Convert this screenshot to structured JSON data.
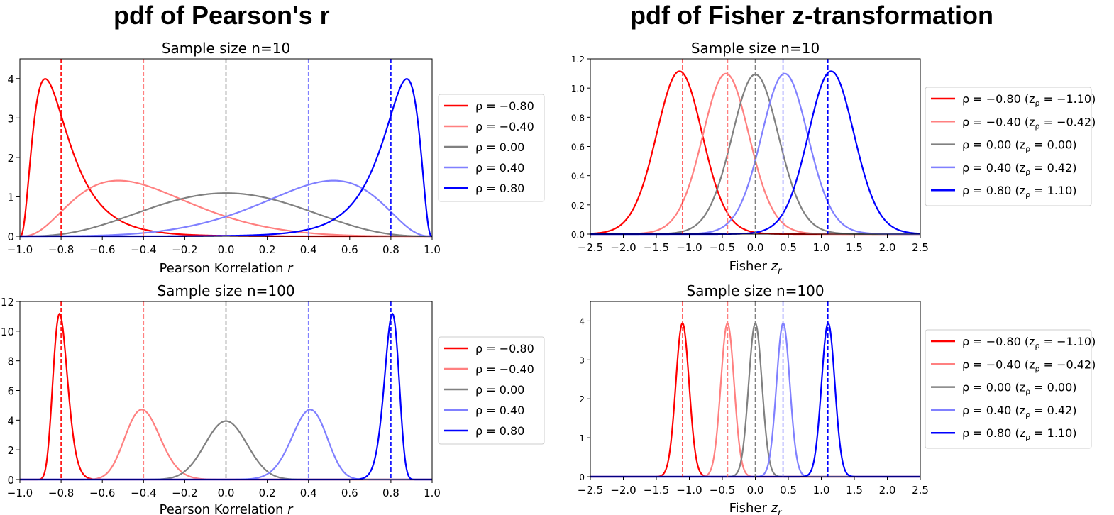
{
  "figure": {
    "left_title": "pdf of Pearson's r",
    "right_title": "pdf of Fisher z-transformation"
  },
  "series_colors": [
    "#ff0000",
    "#ff8080",
    "#808080",
    "#8080ff",
    "#0000ff"
  ],
  "chart_data": [
    {
      "type": "line",
      "title": "Sample size n=10",
      "xlabel": "Pearson Korrelation r",
      "xlim": [
        -1.0,
        1.0
      ],
      "ylim": [
        0,
        4.5
      ],
      "x_ticks": [
        "−1.0",
        "−0.8",
        "−0.6",
        "−0.4",
        "−0.2",
        "0.0",
        "0.2",
        "0.4",
        "0.6",
        "0.8",
        "1.0"
      ],
      "y_ticks": [
        "0",
        "1",
        "2",
        "3",
        "4"
      ],
      "n": 10,
      "rho": [
        -0.8,
        -0.4,
        0.0,
        0.4,
        0.8
      ],
      "vlines": [
        -0.8,
        -0.4,
        0.0,
        0.4,
        0.8
      ],
      "legend": [
        "ρ = −0.80",
        "ρ = −0.40",
        "ρ = 0.00",
        "ρ = 0.40",
        "ρ = 0.80"
      ],
      "legend_position": "center-right outside",
      "series": [
        {
          "x": [
            -1.0,
            -0.95,
            -0.9,
            -0.88,
            -0.85,
            -0.8,
            -0.7,
            -0.6,
            -0.5,
            -0.4,
            -0.2,
            0.0,
            0.2,
            0.5,
            1.0
          ],
          "values": [
            0.0,
            2.7,
            3.9,
            4.0,
            3.8,
            3.1,
            1.8,
            0.95,
            0.5,
            0.26,
            0.07,
            0.02,
            0.004,
            0.0,
            0.0
          ]
        },
        {
          "x": [
            -1.0,
            -0.8,
            -0.6,
            -0.52,
            -0.4,
            -0.2,
            0.0,
            0.2,
            0.4,
            0.6,
            0.8,
            1.0
          ],
          "values": [
            0.0,
            0.6,
            1.32,
            1.42,
            1.35,
            0.98,
            0.6,
            0.3,
            0.12,
            0.04,
            0.005,
            0.0
          ]
        },
        {
          "x": [
            -1.0,
            -0.8,
            -0.6,
            -0.4,
            -0.2,
            0.0,
            0.2,
            0.4,
            0.6,
            0.8,
            1.0
          ],
          "values": [
            0.0,
            0.05,
            0.3,
            0.63,
            0.95,
            1.09,
            0.95,
            0.63,
            0.3,
            0.05,
            0.0
          ]
        },
        {
          "x": [
            -1.0,
            -0.8,
            -0.6,
            -0.4,
            -0.2,
            0.0,
            0.2,
            0.4,
            0.52,
            0.6,
            0.8,
            1.0
          ],
          "values": [
            0.0,
            0.005,
            0.04,
            0.12,
            0.3,
            0.6,
            0.98,
            1.35,
            1.42,
            1.32,
            0.6,
            0.0
          ]
        },
        {
          "x": [
            -1.0,
            -0.5,
            -0.2,
            0.0,
            0.2,
            0.4,
            0.5,
            0.6,
            0.7,
            0.8,
            0.85,
            0.88,
            0.9,
            0.95,
            1.0
          ],
          "values": [
            0.0,
            0.0,
            0.004,
            0.02,
            0.07,
            0.26,
            0.5,
            0.95,
            1.8,
            3.1,
            3.8,
            4.0,
            3.9,
            2.7,
            0.0
          ]
        }
      ]
    },
    {
      "type": "line",
      "title": "Sample size n=10",
      "xlabel": "Fisher z_r",
      "xlim": [
        -2.5,
        2.5
      ],
      "ylim": [
        0,
        1.2
      ],
      "x_ticks": [
        "−2.5",
        "−2.0",
        "−1.5",
        "−1.0",
        "−0.5",
        "0.0",
        "0.5",
        "1.0",
        "1.5",
        "2.0",
        "2.5"
      ],
      "y_ticks": [
        "0.0",
        "0.2",
        "0.4",
        "0.6",
        "0.8",
        "1.0",
        "1.2"
      ],
      "n": 10,
      "z_rho": [
        -1.1,
        -0.42,
        0.0,
        0.42,
        1.1
      ],
      "vlines": [
        -1.1,
        -0.42,
        0.0,
        0.42,
        1.1
      ],
      "legend": [
        {
          "main": "ρ = −0.80 (z",
          "sub": "ρ",
          "tail": " = −1.10)"
        },
        {
          "main": "ρ = −0.40 (z",
          "sub": "ρ",
          "tail": " = −0.42)"
        },
        {
          "main": "ρ = 0.00 (z",
          "sub": "ρ",
          "tail": " = 0.00)"
        },
        {
          "main": "ρ = 0.40 (z",
          "sub": "ρ",
          "tail": " = 0.42)"
        },
        {
          "main": "ρ = 0.80 (z",
          "sub": "ρ",
          "tail": " = 1.10)"
        }
      ],
      "legend_position": "center-right outside",
      "peak_heights": [
        1.11,
        1.1,
        1.1,
        1.1,
        1.11
      ]
    },
    {
      "type": "line",
      "title": "Sample size n=100",
      "xlabel": "Pearson Korrelation r",
      "xlim": [
        -1.0,
        1.0
      ],
      "ylim": [
        0,
        12
      ],
      "x_ticks": [
        "−1.0",
        "−0.8",
        "−0.6",
        "−0.4",
        "−0.2",
        "0.0",
        "0.2",
        "0.4",
        "0.6",
        "0.8",
        "1.0"
      ],
      "y_ticks": [
        "0",
        "2",
        "4",
        "6",
        "8",
        "10",
        "12"
      ],
      "n": 100,
      "rho": [
        -0.8,
        -0.4,
        0.0,
        0.4,
        0.8
      ],
      "vlines": [
        -0.8,
        -0.4,
        0.0,
        0.4,
        0.8
      ],
      "legend": [
        "ρ = −0.80",
        "ρ = −0.40",
        "ρ = 0.00",
        "ρ = 0.40",
        "ρ = 0.80"
      ],
      "legend_position": "center-right outside",
      "peak_heights": [
        11.1,
        4.7,
        3.95,
        4.7,
        11.1
      ]
    },
    {
      "type": "line",
      "title": "Sample size n=100",
      "xlabel": "Fisher z_r",
      "xlim": [
        -2.5,
        2.5
      ],
      "ylim": [
        0,
        4.5
      ],
      "x_ticks": [
        "−2.5",
        "−2.0",
        "−1.5",
        "−1.0",
        "−0.5",
        "0.0",
        "0.5",
        "1.0",
        "1.5",
        "2.0",
        "2.5"
      ],
      "y_ticks": [
        "0",
        "1",
        "2",
        "3",
        "4"
      ],
      "n": 100,
      "z_rho": [
        -1.1,
        -0.42,
        0.0,
        0.42,
        1.1
      ],
      "vlines": [
        -1.1,
        -0.42,
        0.0,
        0.42,
        1.1
      ],
      "legend": [
        {
          "main": "ρ = −0.80 (z",
          "sub": "ρ",
          "tail": " = −1.10)"
        },
        {
          "main": "ρ = −0.40 (z",
          "sub": "ρ",
          "tail": " = −0.42)"
        },
        {
          "main": "ρ = 0.00 (z",
          "sub": "ρ",
          "tail": " = 0.00)"
        },
        {
          "main": "ρ = 0.40 (z",
          "sub": "ρ",
          "tail": " = 0.42)"
        },
        {
          "main": "ρ = 0.80 (z",
          "sub": "ρ",
          "tail": " = 1.10)"
        }
      ],
      "legend_position": "center-right outside",
      "peak_heights": [
        3.93,
        3.93,
        3.93,
        3.93,
        3.93
      ]
    }
  ]
}
